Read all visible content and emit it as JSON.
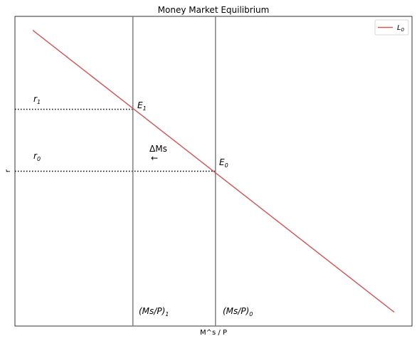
{
  "chart_data": {
    "type": "line",
    "title": "Money Market Equilibrium",
    "xlabel": "M^s / P",
    "ylabel": "r",
    "xlim": [
      0,
      10
    ],
    "ylim": [
      0,
      10
    ],
    "xticks": [],
    "yticks": [],
    "grid": false,
    "legend_position": "top-right",
    "series": [
      {
        "name": "L0",
        "color": "#cd5c5c",
        "x": [
          0.45,
          9.55
        ],
        "y": [
          9.55,
          0.45
        ]
      }
    ],
    "vlines": [
      {
        "label": "(Ms/P)1",
        "x": 2.97,
        "color": "#808080"
      },
      {
        "label": "(Ms/P)0",
        "x": 5.05,
        "color": "#808080"
      }
    ],
    "hlines": [
      {
        "label": "r1",
        "y": 7.0,
        "x_to": 2.97,
        "style": "dotted"
      },
      {
        "label": "r0",
        "y": 5.0,
        "x_to": 5.05,
        "style": "dotted"
      }
    ],
    "points": [
      {
        "label": "E1",
        "x": 2.97,
        "y": 7.0
      },
      {
        "label": "E0",
        "x": 5.05,
        "y": 5.0
      }
    ],
    "annotations": [
      {
        "text": "ΔMs",
        "x": 3.37,
        "y": 5.45
      },
      {
        "text": "←",
        "x": 3.4,
        "y": 5.1
      }
    ],
    "labels": {
      "r1_base": "r",
      "r1_sub": "1",
      "r0_base": "r",
      "r0_sub": "0",
      "E1_base": "E",
      "E1_sub": "1",
      "E0_base": "E",
      "E0_sub": "0",
      "ms1_base": "(Ms/P)",
      "ms1_sub": "1",
      "ms0_base": "(Ms/P)",
      "ms0_sub": "0",
      "legend_base": "L",
      "legend_sub": "0",
      "delta": "ΔMs",
      "arrow": "←"
    }
  }
}
